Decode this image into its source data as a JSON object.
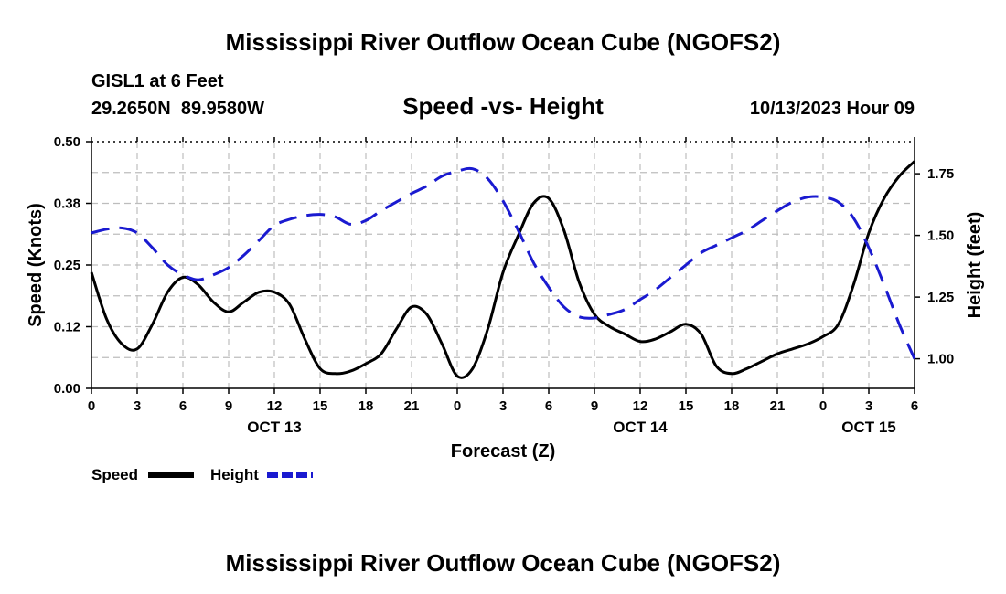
{
  "page_title": "Mississippi River Outflow Ocean Cube (NGOFS2)",
  "page_title_bottom": "Mississippi River Outflow Ocean Cube (NGOFS2)",
  "station": {
    "name": "GISL1 at 6 Feet",
    "coords": "29.2650N  89.9580W"
  },
  "timestamp": "10/13/2023 Hour 09",
  "colors": {
    "speed": "#000000",
    "height": "#1a1ad0",
    "grid": "#bdbdbd"
  },
  "chart_data": {
    "type": "line",
    "title": "Speed -vs- Height",
    "xlabel": "Forecast (Z)",
    "ylabel": "Speed (Knots)",
    "y2label": "Height (feet)",
    "xlim": [
      0,
      54
    ],
    "ylim": [
      0,
      0.5
    ],
    "y2lim": [
      0.88,
      1.88
    ],
    "x_ticks": [
      0,
      3,
      6,
      9,
      12,
      15,
      18,
      21,
      24,
      27,
      30,
      33,
      36,
      39,
      42,
      45,
      48,
      51,
      54
    ],
    "x_tick_labels": [
      "0",
      "3",
      "6",
      "9",
      "12",
      "15",
      "18",
      "21",
      "0",
      "3",
      "6",
      "9",
      "12",
      "15",
      "18",
      "21",
      "0",
      "3",
      "6"
    ],
    "day_labels": [
      {
        "x": 12,
        "label": "OCT 13"
      },
      {
        "x": 36,
        "label": "OCT 14"
      },
      {
        "x": 51,
        "label": "OCT 15"
      }
    ],
    "y_ticks": [
      0,
      0.125,
      0.25,
      0.375,
      0.5
    ],
    "y_tick_labels": [
      "0.00",
      "0.12",
      "0.25",
      "0.38",
      "0.50"
    ],
    "y2_ticks": [
      1.0,
      1.25,
      1.5,
      1.75
    ],
    "y2_tick_labels": [
      "1.00",
      "1.25",
      "1.50",
      "1.75"
    ],
    "series": [
      {
        "name": "Speed",
        "axis": "left",
        "style": "solid",
        "x": [
          0,
          1,
          2,
          3,
          4,
          5,
          6,
          7,
          8,
          9,
          10,
          11,
          12,
          13,
          14,
          15,
          16,
          17,
          18,
          19,
          20,
          21,
          22,
          23,
          24,
          25,
          26,
          27,
          28,
          29,
          30,
          31,
          32,
          33,
          34,
          35,
          36,
          37,
          38,
          39,
          40,
          41,
          42,
          43,
          44,
          45,
          46,
          47,
          48,
          49,
          50,
          51,
          52,
          53,
          54
        ],
        "values": [
          0.235,
          0.14,
          0.09,
          0.08,
          0.13,
          0.195,
          0.225,
          0.21,
          0.175,
          0.155,
          0.175,
          0.195,
          0.195,
          0.17,
          0.1,
          0.04,
          0.03,
          0.035,
          0.05,
          0.07,
          0.12,
          0.165,
          0.15,
          0.09,
          0.025,
          0.04,
          0.12,
          0.235,
          0.31,
          0.375,
          0.385,
          0.32,
          0.215,
          0.15,
          0.125,
          0.11,
          0.095,
          0.1,
          0.115,
          0.13,
          0.11,
          0.045,
          0.03,
          0.04,
          0.055,
          0.07,
          0.08,
          0.09,
          0.105,
          0.13,
          0.21,
          0.315,
          0.385,
          0.43,
          0.46
        ]
      },
      {
        "name": "Height",
        "axis": "right",
        "style": "dashed",
        "x": [
          0,
          1,
          2,
          3,
          4,
          5,
          6,
          7,
          8,
          9,
          10,
          11,
          12,
          13,
          14,
          15,
          16,
          17,
          18,
          19,
          20,
          21,
          22,
          23,
          24,
          25,
          26,
          27,
          28,
          29,
          30,
          31,
          32,
          33,
          34,
          35,
          36,
          37,
          38,
          39,
          40,
          41,
          42,
          43,
          44,
          45,
          46,
          47,
          48,
          49,
          50,
          51,
          52,
          53,
          54
        ],
        "values": [
          1.51,
          1.525,
          1.53,
          1.51,
          1.45,
          1.38,
          1.34,
          1.32,
          1.34,
          1.37,
          1.42,
          1.48,
          1.54,
          1.565,
          1.58,
          1.585,
          1.575,
          1.545,
          1.56,
          1.6,
          1.635,
          1.67,
          1.7,
          1.74,
          1.76,
          1.77,
          1.73,
          1.64,
          1.52,
          1.39,
          1.29,
          1.21,
          1.17,
          1.165,
          1.18,
          1.2,
          1.24,
          1.28,
          1.33,
          1.38,
          1.43,
          1.46,
          1.49,
          1.52,
          1.56,
          1.6,
          1.635,
          1.655,
          1.655,
          1.635,
          1.57,
          1.45,
          1.3,
          1.14,
          1.0
        ]
      }
    ],
    "legend": {
      "position": "bottom-left",
      "entries": [
        "Speed",
        "Height"
      ]
    },
    "grid": true
  }
}
